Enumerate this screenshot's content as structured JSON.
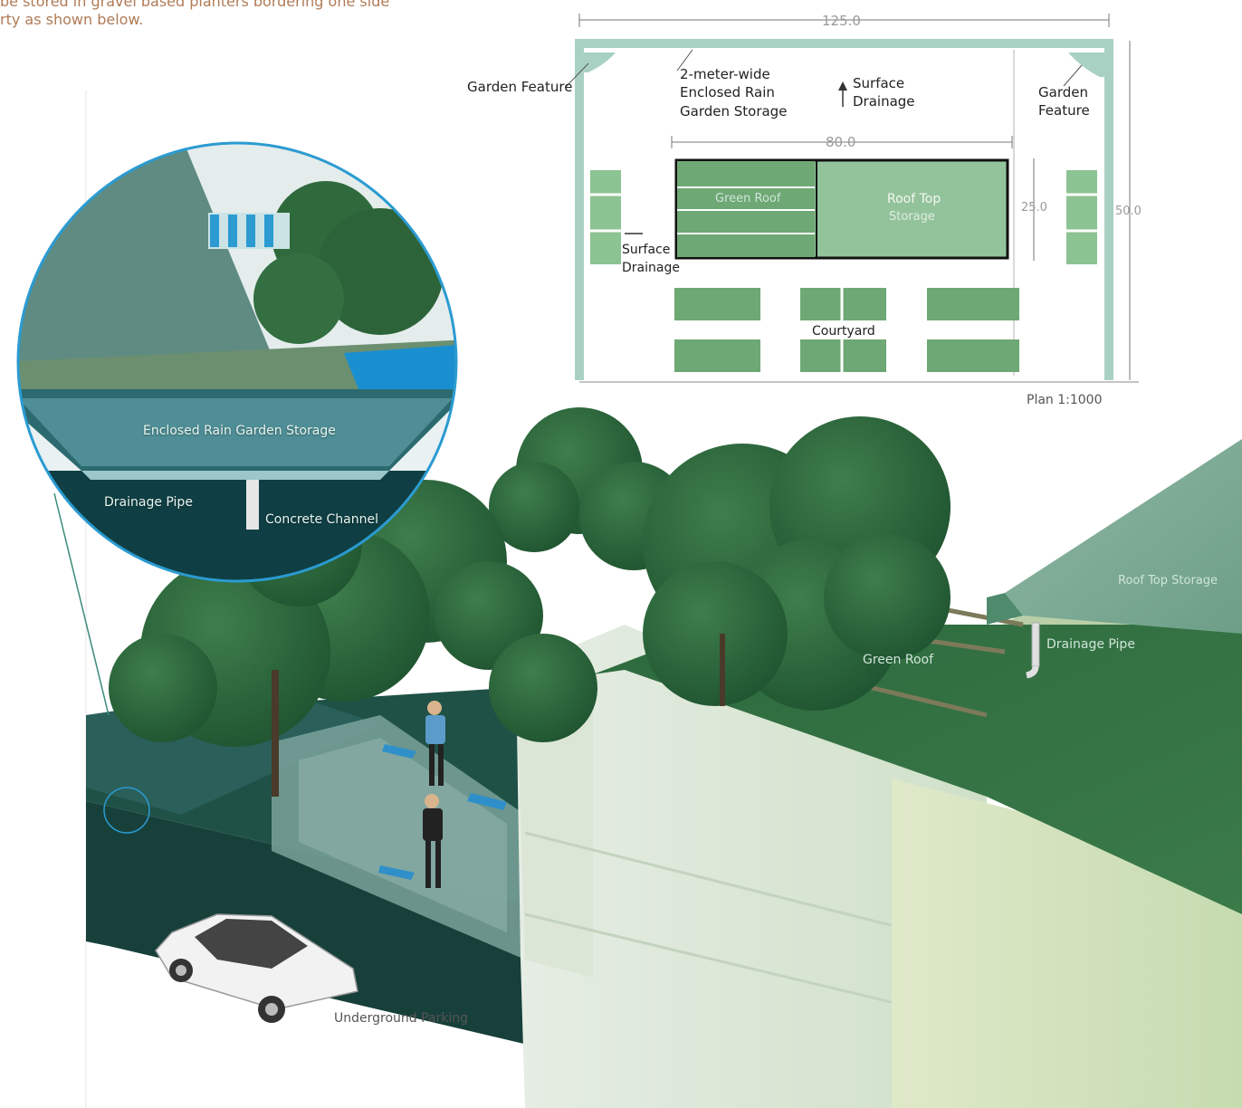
{
  "intro": {
    "line1": "be stored in gravel based planters bordering one side",
    "line2": "rty as shown below."
  },
  "plan": {
    "dimensions": {
      "overall_width": "125.0",
      "inner_width": "80.0",
      "block_height": "25.0",
      "overall_depth": "50.0"
    },
    "labels": {
      "garden_feature_left": "Garden Feature",
      "garden_feature_right_1": "Garden",
      "garden_feature_right_2": "Feature",
      "enclosed_storage_1": "2-meter-wide",
      "enclosed_storage_2": "Enclosed Rain",
      "enclosed_storage_3": "Garden Storage",
      "surface_drainage_top_1": "Surface",
      "surface_drainage_top_2": "Drainage",
      "green_roof": "Green Roof",
      "roof_top_storage_1": "Roof Top",
      "roof_top_storage_2": "Storage",
      "surface_drainage_side_1": "Surface",
      "surface_drainage_side_2": "Drainage",
      "courtyard": "Courtyard"
    },
    "scale": "Plan 1:1000"
  },
  "inset": {
    "storage": "Enclosed Rain Garden Storage",
    "drainage_pipe": "Drainage Pipe",
    "concrete_channel": "Concrete Channel"
  },
  "section": {
    "roof_top_storage": "Roof Top Storage",
    "drainage_pipe": "Drainage Pipe",
    "green_roof": "Green Roof",
    "underground_parking": "Underground Parking"
  },
  "colors": {
    "plan_frame": "#a9d1c3",
    "green": "#6ea874",
    "green_light": "#97c69d",
    "dark_teal": "#1e4a45",
    "pale": "#e9efe6",
    "inset_ring": "#2b9bd1"
  }
}
